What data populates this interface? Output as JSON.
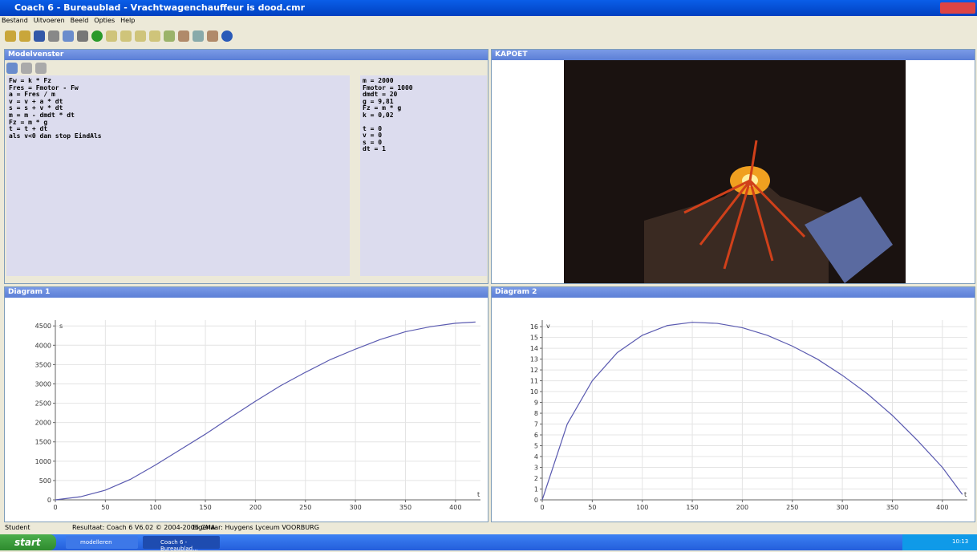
{
  "window_title": "Coach 6 - Bureaublad - Vrachtwagenchauffeur is dood.cmr",
  "menu": [
    "Bestand",
    "Uitvoeren",
    "Beeld",
    "Opties",
    "Help"
  ],
  "model_window": {
    "title": "Modelvenster",
    "equations": [
      "Fw = k * Fz",
      "Fres = Fmotor - Fw",
      "a = Fres / m",
      "v = v + a * dt",
      "s = s + v * dt",
      "m = m - dmdt * dt",
      "Fz = m * g",
      "t = t + dt",
      "als v<0 dan stop EindAls"
    ],
    "constants": [
      "m = 2000",
      "Fmotor = 1000",
      "dmdt = 20",
      "g = 9,81",
      "Fz = m * g",
      "k = 0,02"
    ],
    "start_values": [
      "t = 0",
      "v = 0",
      "s = 0",
      "dt = 1"
    ]
  },
  "video_window": {
    "title": "KAPOET"
  },
  "chart_data": [
    {
      "type": "line",
      "title": "Diagram 1",
      "y_label": "s",
      "x_label": "t",
      "x": [
        0,
        25,
        50,
        75,
        100,
        125,
        150,
        175,
        200,
        225,
        250,
        275,
        300,
        325,
        350,
        375,
        400,
        420
      ],
      "values": [
        0,
        80,
        250,
        530,
        900,
        1300,
        1700,
        2130,
        2550,
        2950,
        3300,
        3630,
        3900,
        4150,
        4350,
        4480,
        4570,
        4600
      ],
      "color": "#5a5ab0",
      "xlim": [
        0,
        425
      ],
      "ylim": [
        0,
        4650
      ],
      "xticks": [
        0,
        50,
        100,
        150,
        200,
        250,
        300,
        350,
        400
      ],
      "yticks": [
        0,
        500,
        1000,
        1500,
        2000,
        2500,
        3000,
        3500,
        4000,
        4500
      ],
      "grid": true
    },
    {
      "type": "line",
      "title": "Diagram 2",
      "y_label": "v",
      "x_label": "t",
      "x": [
        0,
        25,
        50,
        75,
        100,
        125,
        150,
        175,
        200,
        225,
        250,
        275,
        300,
        325,
        350,
        375,
        400,
        420
      ],
      "values": [
        0,
        7,
        11,
        13.6,
        15.2,
        16.1,
        16.4,
        16.3,
        15.9,
        15.2,
        14.2,
        13,
        11.5,
        9.8,
        7.8,
        5.5,
        3,
        0.5
      ],
      "color": "#5a5ab0",
      "xlim": [
        0,
        425
      ],
      "ylim": [
        0,
        16.6
      ],
      "xticks": [
        0,
        50,
        100,
        150,
        200,
        250,
        300,
        350,
        400
      ],
      "yticks": [
        0,
        1,
        2,
        3,
        4,
        5,
        6,
        7,
        8,
        9,
        10,
        11,
        12,
        13,
        14,
        15,
        16
      ],
      "grid": true
    }
  ],
  "status_bar": [
    "Student",
    "Resultaat: Coach 6 V6.02 © 2004-2006 CMA",
    "Eigenaar: Huygens Lyceum VOORBURG"
  ],
  "taskbar": {
    "start": "start",
    "tasks": [
      "modelleren",
      "Coach 6 - Bureaublad..."
    ],
    "clock": "10:13"
  }
}
